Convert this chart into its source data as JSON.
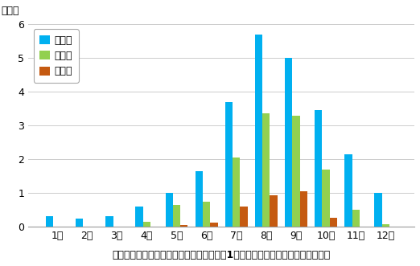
{
  "months": [
    "1月",
    "2月",
    "3月",
    "4月",
    "5月",
    "6月",
    "7月",
    "8月",
    "9月",
    "10月",
    "11月",
    "12月"
  ],
  "hassei": [
    0.3,
    0.25,
    0.3,
    0.6,
    1.0,
    1.65,
    3.7,
    5.7,
    5.0,
    3.45,
    2.15,
    1.0
  ],
  "sekkin": [
    0.0,
    0.0,
    0.0,
    0.15,
    0.65,
    0.75,
    2.05,
    3.35,
    3.3,
    1.7,
    0.5,
    0.07
  ],
  "joriku": [
    0.0,
    0.0,
    0.0,
    0.0,
    0.05,
    0.13,
    0.6,
    0.93,
    1.05,
    0.27,
    0.0,
    0.0
  ],
  "color_hassei": "#00b0f0",
  "color_sekkin": "#92d050",
  "color_joriku": "#c55a11",
  "ylabel": "（個）",
  "xlabel": "月別の台風発生・接近・上陸数の平年値（1９９１～２０２０年の３０年平均）",
  "legend_labels": [
    "発生数",
    "接近数",
    "上陸数"
  ],
  "ylim": [
    0,
    6
  ],
  "yticks": [
    0,
    1,
    2,
    3,
    4,
    5,
    6
  ],
  "bar_width": 0.25,
  "background_color": "#ffffff"
}
